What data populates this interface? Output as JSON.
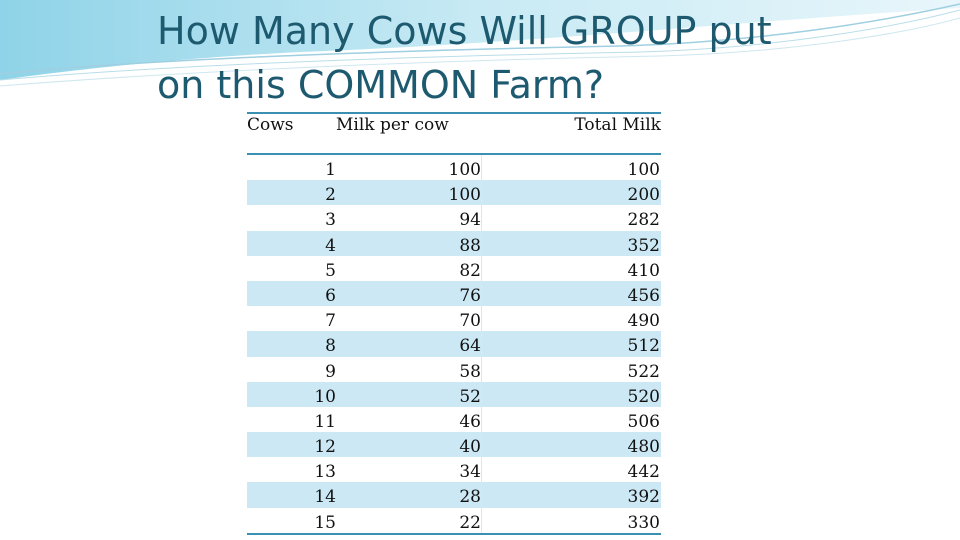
{
  "slide": {
    "title_line1": "How Many Cows Will GROUP put",
    "title_line2": "on this COMMON Farm?",
    "accent_color": "#1d5a70",
    "band_color": "#cbe8f4"
  },
  "table": {
    "headers": [
      "Cows",
      "Milk per cow",
      "Total Milk"
    ],
    "rows": [
      [
        "1",
        "100",
        "100"
      ],
      [
        "2",
        "100",
        "200"
      ],
      [
        "3",
        "94",
        "282"
      ],
      [
        "4",
        "88",
        "352"
      ],
      [
        "5",
        "82",
        "410"
      ],
      [
        "6",
        "76",
        "456"
      ],
      [
        "7",
        "70",
        "490"
      ],
      [
        "8",
        "64",
        "512"
      ],
      [
        "9",
        "58",
        "522"
      ],
      [
        "10",
        "52",
        "520"
      ],
      [
        "11",
        "46",
        "506"
      ],
      [
        "12",
        "40",
        "480"
      ],
      [
        "13",
        "34",
        "442"
      ],
      [
        "14",
        "28",
        "392"
      ],
      [
        "15",
        "22",
        "330"
      ]
    ]
  }
}
